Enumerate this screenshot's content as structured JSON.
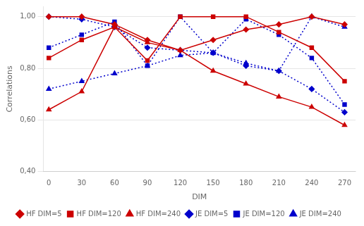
{
  "chart_data": {
    "type": "line",
    "xlabel": "DIM",
    "ylabel": "Correlations",
    "x": [
      0,
      30,
      60,
      90,
      120,
      150,
      180,
      210,
      240,
      270
    ],
    "series": [
      {
        "name": "HF DIM=5",
        "color": "#cc0000",
        "line_style": "solid",
        "marker": "diamond",
        "values": [
          1.0,
          1.0,
          0.97,
          0.91,
          0.87,
          0.91,
          0.95,
          0.97,
          1.0,
          0.97
        ]
      },
      {
        "name": "HF DIM=120",
        "color": "#cc0000",
        "line_style": "solid",
        "marker": "square",
        "values": [
          0.84,
          0.91,
          0.96,
          0.83,
          1.0,
          1.0,
          1.0,
          0.94,
          0.88,
          0.75
        ]
      },
      {
        "name": "HF DIM=240",
        "color": "#cc0000",
        "line_style": "solid",
        "marker": "triangle",
        "values": [
          0.64,
          0.71,
          0.96,
          0.9,
          0.87,
          0.79,
          0.74,
          0.69,
          0.65,
          0.58
        ]
      },
      {
        "name": "JE DIM=5",
        "color": "#0000cc",
        "line_style": "dotted",
        "marker": "diamond",
        "values": [
          1.0,
          0.99,
          0.96,
          0.88,
          0.87,
          0.86,
          0.81,
          0.79,
          0.72,
          0.63
        ]
      },
      {
        "name": "JE DIM=120",
        "color": "#0000cc",
        "line_style": "dotted",
        "marker": "square",
        "values": [
          0.88,
          0.93,
          0.98,
          0.81,
          1.0,
          0.86,
          0.99,
          0.93,
          0.84,
          0.66
        ]
      },
      {
        "name": "JE DIM=240",
        "color": "#0000cc",
        "line_style": "dotted",
        "marker": "triangle",
        "values": [
          0.72,
          0.75,
          0.78,
          0.81,
          0.85,
          0.86,
          0.82,
          0.79,
          1.0,
          0.96
        ]
      }
    ],
    "xlim": [
      -5,
      280
    ],
    "xticks": [
      0,
      30,
      60,
      90,
      120,
      150,
      180,
      210,
      240,
      270
    ],
    "ylim": [
      0.4,
      1.04
    ],
    "yticks": [
      {
        "value": 0.4,
        "label": "0,40"
      },
      {
        "value": 0.6,
        "label": "0,60"
      },
      {
        "value": 0.8,
        "label": "0,80"
      },
      {
        "value": 1.0,
        "label": "1,00"
      }
    ],
    "grid": "y",
    "legend": "bottom"
  }
}
